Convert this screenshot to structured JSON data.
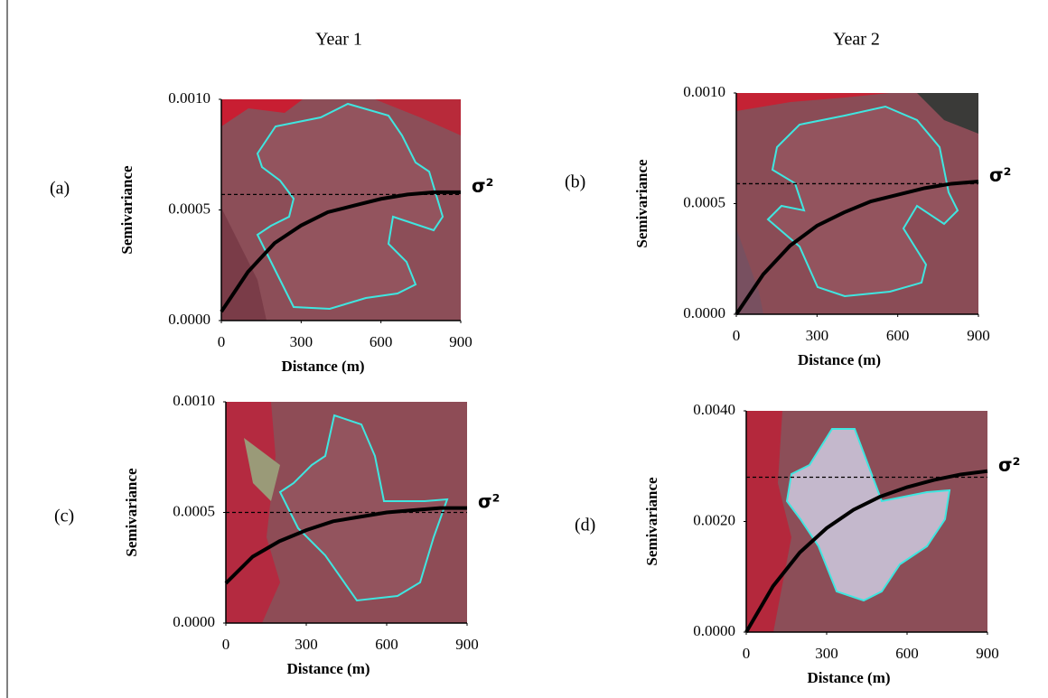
{
  "column_titles": [
    "Year 1",
    "Year 2"
  ],
  "chart_data": [
    {
      "type": "line",
      "panel_label": "(a)",
      "x_label": "Distance (m)",
      "y_label": "Semivariance",
      "annotation": "σ²",
      "x": [
        0,
        100,
        200,
        300,
        400,
        500,
        600,
        700,
        800,
        900
      ],
      "values": [
        4e-05,
        0.00022,
        0.00035,
        0.00043,
        0.00049,
        0.00052,
        0.00055,
        0.00057,
        0.00058,
        0.00058
      ],
      "sill": 0.00057,
      "color": "#000000",
      "xlim": [
        0,
        900
      ],
      "ylim": [
        0,
        0.001
      ],
      "xticks": [
        0,
        300,
        600,
        900
      ],
      "yticks": [
        {
          "value": 0,
          "label": "0.0000"
        },
        {
          "value": 0.0005,
          "label": "0.0005"
        },
        {
          "value": 0.001,
          "label": "0.0010"
        }
      ]
    },
    {
      "type": "line",
      "panel_label": "(b)",
      "x_label": "Distance (m)",
      "y_label": "Semivariance",
      "annotation": "σ²",
      "x": [
        0,
        100,
        200,
        300,
        400,
        500,
        600,
        700,
        800,
        900
      ],
      "values": [
        0,
        0.00018,
        0.00031,
        0.0004,
        0.00046,
        0.00051,
        0.00054,
        0.00057,
        0.00059,
        0.0006
      ],
      "sill": 0.00059,
      "color": "#000000",
      "xlim": [
        0,
        900
      ],
      "ylim": [
        0,
        0.001
      ],
      "xticks": [
        0,
        300,
        600,
        900
      ],
      "yticks": [
        {
          "value": 0,
          "label": "0.0000"
        },
        {
          "value": 0.0005,
          "label": "0.0005"
        },
        {
          "value": 0.001,
          "label": "0.0010"
        }
      ]
    },
    {
      "type": "line",
      "panel_label": "(c)",
      "x_label": "Distance (m)",
      "y_label": "Semivariance",
      "annotation": "σ²",
      "x": [
        0,
        100,
        200,
        300,
        400,
        500,
        600,
        700,
        800,
        900
      ],
      "values": [
        0.00018,
        0.0003,
        0.00037,
        0.00042,
        0.00046,
        0.00048,
        0.0005,
        0.00051,
        0.00052,
        0.00052
      ],
      "sill": 0.0005,
      "color": "#000000",
      "xlim": [
        0,
        900
      ],
      "ylim": [
        0,
        0.001
      ],
      "xticks": [
        0,
        300,
        600,
        900
      ],
      "yticks": [
        {
          "value": 0,
          "label": "0.0000"
        },
        {
          "value": 0.0005,
          "label": "0.0005"
        },
        {
          "value": 0.001,
          "label": "0.0010"
        }
      ]
    },
    {
      "type": "line",
      "panel_label": "(d)",
      "x_label": "Distance (m)",
      "y_label": "Semivariance",
      "annotation": "σ²",
      "x": [
        0,
        100,
        200,
        300,
        400,
        500,
        600,
        700,
        800,
        900
      ],
      "values": [
        0,
        0.00083,
        0.00144,
        0.00188,
        0.00221,
        0.00245,
        0.00262,
        0.00275,
        0.00285,
        0.00291
      ],
      "sill": 0.0028,
      "color": "#000000",
      "xlim": [
        0,
        900
      ],
      "ylim": [
        0,
        0.004
      ],
      "xticks": [
        0,
        300,
        600,
        900
      ],
      "yticks": [
        {
          "value": 0,
          "label": "0.0000"
        },
        {
          "value": 0.002,
          "label": "0.0020"
        },
        {
          "value": 0.004,
          "label": "0.0040"
        }
      ]
    }
  ]
}
